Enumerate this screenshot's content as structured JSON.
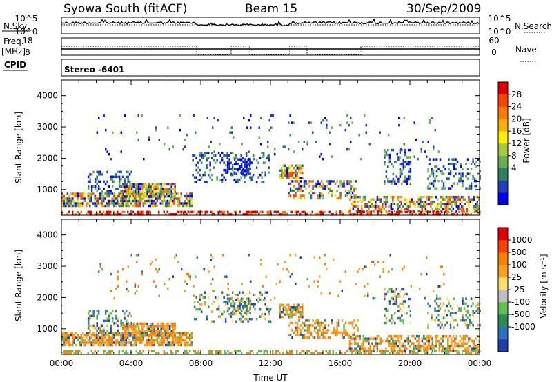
{
  "header": {
    "site": "Syowa South (fitACF)",
    "beam": "Beam 15",
    "date": "30/Sep/2009"
  },
  "strips": {
    "nsky_label": "N.Sky",
    "nsky_ticks": [
      "10^5",
      "10^0"
    ],
    "nsearch_label": "N.Search",
    "nsearch_ticks": [
      "10^5",
      "10^0"
    ],
    "freq_label": "Freq.",
    "freq_unit": "[MHz]",
    "freq_ticks": [
      "18",
      "8"
    ],
    "nave_label": "Nave",
    "nave_ticks": [
      "60",
      "0"
    ],
    "cpid_label": "CPID",
    "cpid_value": "Stereo -6401"
  },
  "chart_data": [
    {
      "type": "heatmap",
      "name": "power",
      "ylabel": "Slant Range [km]",
      "xlabel": "",
      "ylim": [
        180,
        4500
      ],
      "yticks": [
        "4000",
        "3000",
        "2000",
        "1000"
      ],
      "colorbar_label": "Power [dB]",
      "colorbar_ticks": [
        "28",
        "24",
        "20",
        "16",
        "12",
        "8",
        "4"
      ],
      "colorbar_colors": [
        "#0000ff",
        "#1f3fb8",
        "#2e8060",
        "#66b050",
        "#a8c840",
        "#ffee00",
        "#ffb000",
        "#ff7a00",
        "#ff4400",
        "#e00000"
      ]
    },
    {
      "type": "heatmap",
      "name": "velocity",
      "ylabel": "Slant Range [km]",
      "xlabel": "Time UT",
      "ylim": [
        180,
        4500
      ],
      "yticks": [
        "4000",
        "3000",
        "2000",
        "1000"
      ],
      "xticks": [
        "00:00",
        "04:00",
        "08:00",
        "12:00",
        "16:00",
        "20:00",
        "00:00"
      ],
      "colorbar_label": "Velocity [m s⁻¹]",
      "colorbar_ticks": [
        "1000",
        "500",
        "100",
        "25",
        "-25",
        "-100",
        "-500",
        "-1000"
      ],
      "colorbar_colors": [
        "#1c3fb0",
        "#2f6fbf",
        "#2e8b57",
        "#5cbf4f",
        "#bfbfbf",
        "#ffe066",
        "#ffa020",
        "#ff8000",
        "#ff4000",
        "#e00000"
      ]
    }
  ]
}
